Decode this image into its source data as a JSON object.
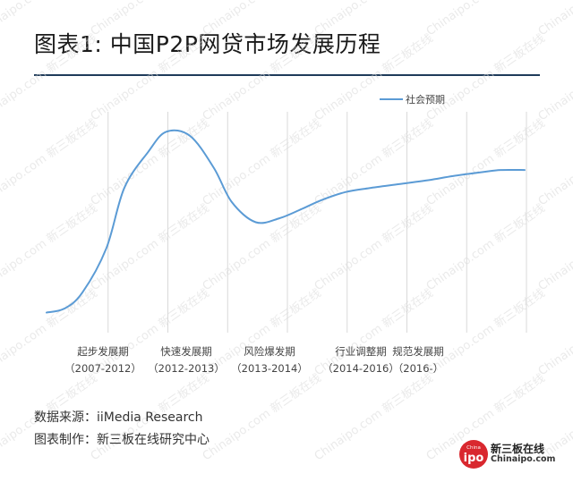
{
  "title": "图表1: 中国P2P网贷市场发展历程",
  "source": {
    "data_source": "数据来源：iiMedia Research",
    "made_by": "图表制作：新三板在线研究中心"
  },
  "logo": {
    "cn_name": "新三板在线",
    "url": "Chinaipo.com",
    "badge_top": "China",
    "badge_main": "ipo",
    "icon": "chinaipo-logo"
  },
  "chart_data": {
    "type": "line",
    "series": [
      {
        "name": "社会预期",
        "color": "#5b9bd5",
        "x": [
          0,
          0.3,
          0.6,
          1.0,
          1.3,
          1.7,
          2.0,
          2.4,
          2.8,
          3.1,
          3.5,
          3.9,
          4.3,
          4.6,
          5.0,
          5.4,
          5.9,
          6.4,
          6.8,
          7.3,
          7.6,
          8.0
        ],
        "values": [
          0.1,
          0.12,
          0.2,
          0.42,
          0.72,
          0.9,
          1.0,
          0.98,
          0.82,
          0.65,
          0.55,
          0.57,
          0.62,
          0.66,
          0.7,
          0.72,
          0.74,
          0.76,
          0.78,
          0.8,
          0.81,
          0.81
        ]
      }
    ],
    "stages": [
      {
        "label": "起步发展期",
        "period": "（2007-2012）"
      },
      {
        "label": "快速发展期",
        "period": "（2012-2013）"
      },
      {
        "label": "风险爆发期",
        "period": "（2013-2014）"
      },
      {
        "label": "行业调整期",
        "period": "（2014-2016）"
      },
      {
        "label": "规范发展期",
        "period": "（2016-）"
      }
    ],
    "legend_position": "top-right",
    "grid": "vertical",
    "xlim": [
      0,
      8
    ],
    "ylim": [
      0,
      1.1
    ],
    "watermark": "Chinaipo.com 新三板在线"
  }
}
